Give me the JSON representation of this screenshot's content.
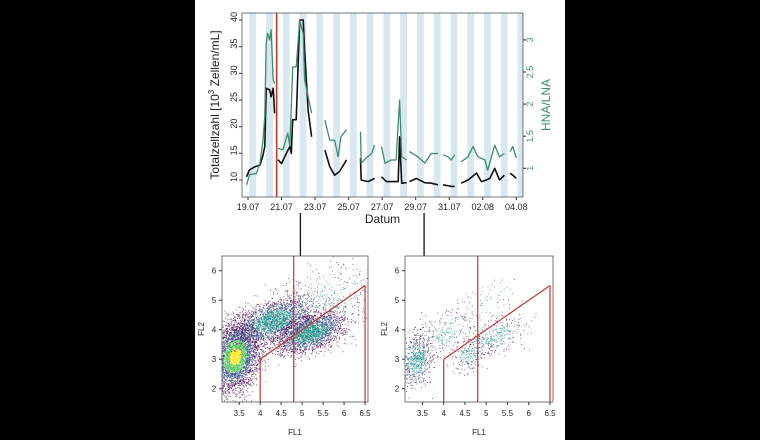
{
  "chart_data": [
    {
      "type": "line",
      "xlabel": "Datum",
      "ylabel": "Totalzellzahl [10³ Zellen/mL]",
      "ylabel_parts": {
        "before": "Totalzellzahl [10",
        "sup": "3",
        "after": " Zellen/mL]"
      },
      "y2label": "HNA/LNA",
      "x_ticks": [
        "19.07",
        "21.07",
        "23.07",
        "25.07",
        "27.07",
        "29.07",
        "31.07",
        "02.08",
        "04.08"
      ],
      "y_ticks": [
        10,
        15,
        20,
        25,
        30,
        35,
        40
      ],
      "y2_ticks": [
        "1",
        "1.5",
        "2",
        "2.5",
        "3"
      ],
      "ylim": [
        7,
        40.5
      ],
      "y2lim": [
        0.6,
        3.35
      ],
      "xlim": [
        "18.07 18:00",
        "04.08 12:00"
      ],
      "colors": {
        "left": "#111111",
        "right": "#3d8c6e",
        "marker": "#c0392b",
        "shading": "#d8e7f0",
        "connector": "#111111"
      },
      "shading": "daily bands",
      "marker_line": "20.07 17:00",
      "sample_times": [
        "22.07 03:00",
        "29.07 12:00"
      ],
      "series": [
        {
          "axis": "left",
          "segments": [
            [
              [
                "18.07 22:00",
                10.6
              ],
              [
                "19.07 02:00",
                11.9
              ],
              [
                "19.07 10:00",
                12.5
              ],
              [
                "19.07 17:00",
                12.8
              ],
              [
                "19.07 21:00",
                14.4
              ],
              [
                "20.07 00:00",
                16.3
              ],
              [
                "20.07 02:00",
                27.2
              ],
              [
                "20.07 07:00",
                26.9
              ],
              [
                "20.07 09:00",
                25.6
              ],
              [
                "20.07 12:00",
                27.2
              ],
              [
                "20.07 14:00",
                22.5
              ]
            ],
            [
              [
                "20.07 19:00",
                13.8
              ],
              [
                "21.07 00:00",
                13.1
              ],
              [
                "21.07 07:00",
                15
              ],
              [
                "21.07 12:00",
                16.3
              ],
              [
                "21.07 14:00",
                15
              ],
              [
                "21.07 16:00",
                21.3
              ],
              [
                "21.07 21:00",
                21.3
              ],
              [
                "22.07 02:00",
                40
              ],
              [
                "22.07 07:00",
                40
              ],
              [
                "22.07 09:00",
                34.4
              ],
              [
                "22.07 14:00",
                23.1
              ],
              [
                "22.07 19:00",
                18.1
              ]
            ],
            [
              [
                "23.07 14:00",
                15.6
              ],
              [
                "23.07 21:00",
                12.5
              ],
              [
                "24.07 04:00",
                10.9
              ],
              [
                "24.07 11:00",
                11.6
              ],
              [
                "24.07 18:00",
                13.1
              ],
              [
                "24.07 21:00",
                13.8
              ]
            ],
            [
              [
                "25.07 17:00",
                14.1
              ],
              [
                "25.07 18:00",
                10
              ],
              [
                "26.07 04:00",
                9.7
              ],
              [
                "26.07 13:00",
                10.3
              ]
            ],
            [
              [
                "26.07 23:00",
                10.6
              ],
              [
                "27.07 06:00",
                9.7
              ],
              [
                "27.07 18:00",
                9.7
              ],
              [
                "27.07 23:00",
                9.7
              ],
              [
                "28.07 01:00",
                18.1
              ],
              [
                "28.07 04:00",
                9.4
              ],
              [
                "28.07 11:00",
                9.5
              ]
            ],
            [
              [
                "28.07 15:00",
                9.7
              ],
              [
                "29.07 01:00",
                10.3
              ],
              [
                "29.07 13:00",
                9.5
              ],
              [
                "29.07 22:00",
                9.4
              ],
              [
                "30.07 08:00",
                9.1
              ]
            ],
            [
              [
                "30.07 15:00",
                9.1
              ],
              [
                "31.07 03:00",
                8.8
              ],
              [
                "31.07 08:00",
                8.8
              ]
            ],
            [
              [
                "31.07 17:00",
                9.4
              ],
              [
                "01.08 03:00",
                10
              ],
              [
                "01.08 15:00",
                11.3
              ],
              [
                "01.08 22:00",
                9.7
              ],
              [
                "02.08 05:00",
                10
              ],
              [
                "02.08 10:00",
                10.3
              ],
              [
                "02.08 17:00",
                12.2
              ],
              [
                "03.08 00:00",
                10
              ],
              [
                "03.08 07:00",
                10.9
              ]
            ],
            [
              [
                "03.08 15:00",
                11.3
              ],
              [
                "03.08 19:00",
                10.9
              ],
              [
                "04.08 00:00",
                10.3
              ]
            ]
          ]
        },
        {
          "axis": "right",
          "segments": [
            [
              [
                "18.07 22:00",
                0.74
              ],
              [
                "19.07 02:00",
                0.9
              ],
              [
                "19.07 12:00",
                0.92
              ],
              [
                "19.07 17:00",
                1.08
              ],
              [
                "19.07 21:00",
                1.39
              ],
              [
                "20.07 00:00",
                1.81
              ],
              [
                "20.07 02:00",
                2.95
              ],
              [
                "20.07 04:00",
                3.1
              ],
              [
                "20.07 07:00",
                3.0
              ],
              [
                "20.07 09:00",
                3.16
              ],
              [
                "20.07 12:00",
                2.38
              ],
              [
                "20.07 14:00",
                2.32
              ]
            ],
            [
              [
                "20.07 19:00",
                1.31
              ],
              [
                "21.07 02:00",
                1.29
              ],
              [
                "21.07 09:00",
                1.55
              ],
              [
                "21.07 12:00",
                1.34
              ],
              [
                "21.07 16:00",
                2.58
              ],
              [
                "21.07 21:00",
                2.58
              ],
              [
                "22.07 02:00",
                3.3
              ],
              [
                "22.07 07:00",
                3.1
              ],
              [
                "22.07 09:00",
                2.38
              ],
              [
                "22.07 14:00",
                2.12
              ],
              [
                "22.07 19:00",
                1.86
              ]
            ],
            [
              [
                "23.07 14:00",
                1.75
              ],
              [
                "23.07 21:00",
                1.44
              ],
              [
                "24.07 04:00",
                1.44
              ],
              [
                "24.07 09:00",
                1.18
              ],
              [
                "24.07 13:00",
                1.49
              ],
              [
                "24.07 21:00",
                1.6
              ]
            ],
            [
              [
                "25.07 17:00",
                1.57
              ],
              [
                "25.07 18:00",
                1.08
              ],
              [
                "26.07 01:00",
                1.16
              ],
              [
                "26.07 09:00",
                1.23
              ],
              [
                "26.07 13:00",
                1.36
              ]
            ],
            [
              [
                "26.07 23:00",
                1.34
              ],
              [
                "27.07 04:00",
                1.08
              ],
              [
                "27.07 13:00",
                1.13
              ],
              [
                "27.07 20:00",
                1.13
              ],
              [
                "28.07 01:00",
                2.06
              ],
              [
                "28.07 04:00",
                1.18
              ],
              [
                "28.07 11:00",
                1.13
              ]
            ],
            [
              [
                "28.07 15:00",
                1.26
              ],
              [
                "29.07 03:00",
                1.18
              ],
              [
                "29.07 13:00",
                1.08
              ],
              [
                "29.07 22:00",
                1.23
              ],
              [
                "30.07 08:00",
                1.23
              ]
            ],
            [
              [
                "30.07 15:00",
                1.21
              ],
              [
                "30.07 22:00",
                1.18
              ],
              [
                "31.07 03:00",
                1.13
              ],
              [
                "31.07 08:00",
                1.21
              ]
            ],
            [
              [
                "31.07 17:00",
                1.1
              ],
              [
                "01.08 03:00",
                1.18
              ],
              [
                "01.08 10:00",
                1.34
              ],
              [
                "01.08 17:00",
                1.18
              ],
              [
                "02.08 03:00",
                1.13
              ],
              [
                "02.08 07:00",
                0.97
              ],
              [
                "02.08 17:00",
                1.36
              ],
              [
                "03.08 00:00",
                1.18
              ],
              [
                "03.08 07:00",
                1.23
              ]
            ],
            [
              [
                "03.08 15:00",
                1.26
              ],
              [
                "03.08 19:00",
                1.34
              ],
              [
                "04.08 00:00",
                1.16
              ]
            ]
          ]
        }
      ]
    },
    {
      "type": "scatter",
      "xlabel": "FL1",
      "ylabel": "FL2",
      "x_ticks": [
        "3.5",
        "4",
        "4.5",
        "5",
        "5.5",
        "6",
        "6.5"
      ],
      "y_ticks": [
        "2",
        "3",
        "4",
        "5",
        "6"
      ],
      "xlim": [
        3.09,
        6.57
      ],
      "ylim": [
        1.55,
        6.5
      ],
      "density_colormap": "viridis",
      "clusters": [
        {
          "center": [
            3.4,
            3.1
          ],
          "spread": [
            0.28,
            0.55
          ],
          "share": 0.45
        },
        {
          "center": [
            4.3,
            4.3
          ],
          "spread": [
            0.45,
            0.35
          ],
          "share": 0.25
        },
        {
          "center": [
            5.2,
            3.9
          ],
          "spread": [
            0.4,
            0.3
          ],
          "share": 0.25
        },
        {
          "center": [
            5.5,
            5.0
          ],
          "spread": [
            0.6,
            0.6
          ],
          "share": 0.05
        }
      ],
      "gates": {
        "color": "#c0392b",
        "lines": [
          [
            [
              4,
              1.55
            ],
            [
              4,
              3
            ]
          ],
          [
            [
              4,
              3
            ],
            [
              6.5,
              5.5
            ]
          ],
          [
            [
              6.5,
              1.55
            ],
            [
              6.5,
              5.5
            ]
          ],
          [
            [
              4.8,
              1.55
            ],
            [
              4.8,
              6.5
            ]
          ]
        ]
      }
    },
    {
      "type": "scatter",
      "xlabel": "FL1",
      "ylabel": "FL2",
      "x_ticks": [
        "3.5",
        "4",
        "4.5",
        "5",
        "5.5",
        "6",
        "6.5"
      ],
      "y_ticks": [
        "2",
        "3",
        "4",
        "5",
        "6"
      ],
      "xlim": [
        3.09,
        6.57
      ],
      "ylim": [
        1.55,
        6.5
      ],
      "density_colormap": "viridis",
      "clusters": [
        {
          "center": [
            3.35,
            3.0
          ],
          "spread": [
            0.2,
            0.45
          ],
          "share": 0.45
        },
        {
          "center": [
            4.0,
            3.9
          ],
          "spread": [
            0.35,
            0.35
          ],
          "share": 0.15
        },
        {
          "center": [
            4.6,
            3.2
          ],
          "spread": [
            0.2,
            0.3
          ],
          "share": 0.15
        },
        {
          "center": [
            5.2,
            3.8
          ],
          "spread": [
            0.35,
            0.3
          ],
          "share": 0.2
        },
        {
          "center": [
            5.0,
            5.0
          ],
          "spread": [
            0.4,
            0.4
          ],
          "share": 0.05
        }
      ],
      "gates": {
        "color": "#c0392b",
        "lines": [
          [
            [
              4,
              1.55
            ],
            [
              4,
              3
            ]
          ],
          [
            [
              4,
              3
            ],
            [
              6.5,
              5.5
            ]
          ],
          [
            [
              6.5,
              1.55
            ],
            [
              6.5,
              5.5
            ]
          ],
          [
            [
              4.8,
              1.55
            ],
            [
              4.8,
              6.5
            ]
          ]
        ]
      }
    }
  ]
}
